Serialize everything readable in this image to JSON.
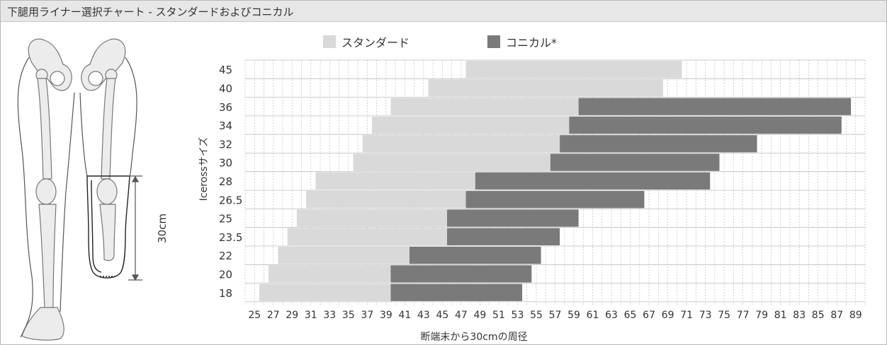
{
  "header": {
    "title": "下腿用ライナー選択チャート - スタンダードおよびコニカル"
  },
  "illustration": {
    "length_label": "30cm"
  },
  "chart_data": {
    "type": "bar",
    "orientation": "horizontal-range",
    "title": "",
    "xlabel": "断端末から30cmの周径",
    "ylabel": "Icerossサイズ",
    "xlim": [
      24,
      90
    ],
    "x_ticks": [
      25,
      27,
      29,
      31,
      33,
      35,
      37,
      39,
      41,
      43,
      45,
      47,
      49,
      51,
      53,
      55,
      57,
      59,
      61,
      63,
      65,
      67,
      69,
      71,
      73,
      75,
      77,
      79,
      81,
      83,
      85,
      87,
      89
    ],
    "categories": [
      "45",
      "40",
      "36",
      "34",
      "32",
      "30",
      "28",
      "26.5",
      "25",
      "23.5",
      "22",
      "20",
      "18"
    ],
    "grid": true,
    "legend_position": "top",
    "series": [
      {
        "name": "スタンダード",
        "color": "#d9d9d9",
        "ranges": [
          [
            47.5,
            70.5
          ],
          [
            43.5,
            68.5
          ],
          [
            39.5,
            59.5
          ],
          [
            37.5,
            58.5
          ],
          [
            36.5,
            57.5
          ],
          [
            35.5,
            56.5
          ],
          [
            31.5,
            48.5
          ],
          [
            30.5,
            47.5
          ],
          [
            29.5,
            45.5
          ],
          [
            28.5,
            45.5
          ],
          [
            27.5,
            41.5
          ],
          [
            26.5,
            39.5
          ],
          [
            25.5,
            39.5
          ]
        ]
      },
      {
        "name": "コニカル*",
        "color": "#7a7a7a",
        "ranges": [
          null,
          null,
          [
            59.5,
            88.5
          ],
          [
            58.5,
            87.5
          ],
          [
            57.5,
            78.5
          ],
          [
            56.5,
            74.5
          ],
          [
            48.5,
            73.5
          ],
          [
            47.5,
            66.5
          ],
          [
            45.5,
            59.5
          ],
          [
            45.5,
            57.5
          ],
          [
            41.5,
            55.5
          ],
          [
            39.5,
            54.5
          ],
          [
            39.5,
            53.5
          ]
        ]
      }
    ]
  }
}
